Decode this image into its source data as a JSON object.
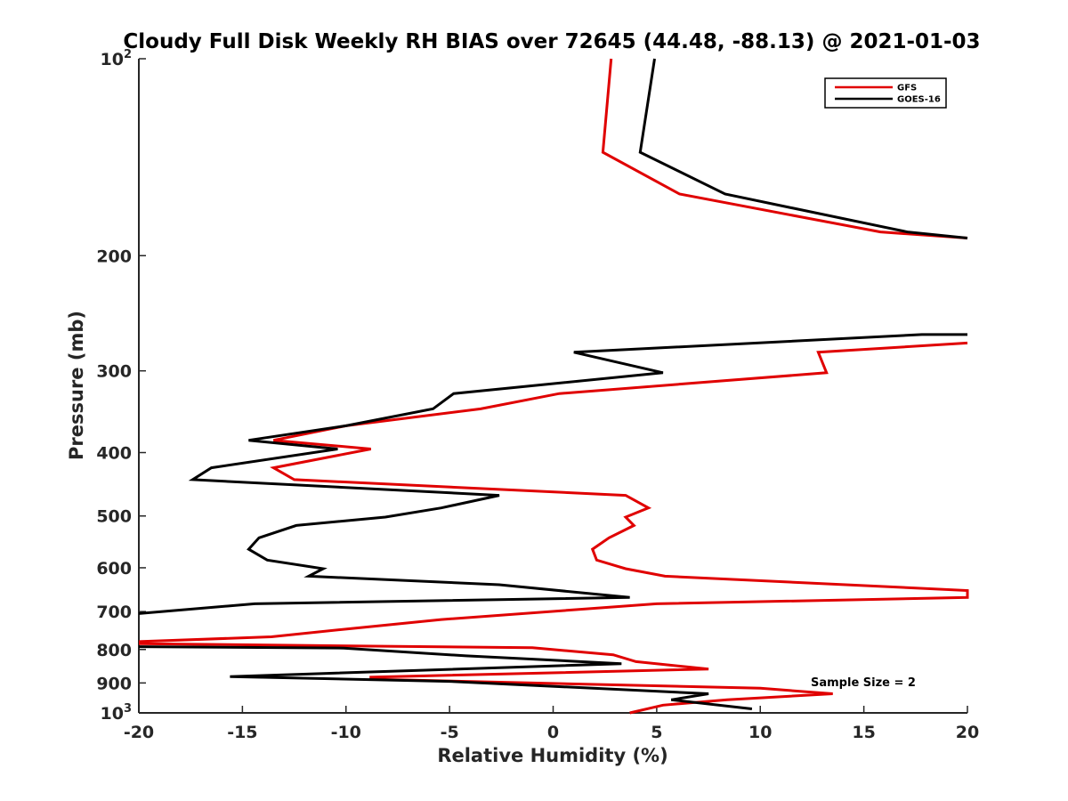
{
  "chart_data": {
    "type": "line",
    "title": "Cloudy Full Disk Weekly RH BIAS over 72645 (44.48, -88.13) @ 2021-01-03",
    "xlabel": "Relative Humidity (%)",
    "ylabel": "Pressure (mb)",
    "xlim": [
      -20,
      20
    ],
    "ylim": [
      100,
      1000
    ],
    "y_scale": "log",
    "y_reversed": true,
    "grid": false,
    "legend_position": "top-right",
    "x_ticks": [
      "-20",
      "-15",
      "-10",
      "-5",
      "0",
      "5",
      "10",
      "15",
      "20"
    ],
    "y_ticks": [
      {
        "value": 100,
        "label": "10",
        "sup": "2"
      },
      {
        "value": 200,
        "label": "200",
        "sup": ""
      },
      {
        "value": 300,
        "label": "300",
        "sup": ""
      },
      {
        "value": 400,
        "label": "400",
        "sup": ""
      },
      {
        "value": 500,
        "label": "500",
        "sup": ""
      },
      {
        "value": 600,
        "label": "600",
        "sup": ""
      },
      {
        "value": 700,
        "label": "700",
        "sup": ""
      },
      {
        "value": 800,
        "label": "800",
        "sup": ""
      },
      {
        "value": 900,
        "label": "900",
        "sup": ""
      },
      {
        "value": 1000,
        "label": "10",
        "sup": "3"
      }
    ],
    "annotation": "Sample Size = 2",
    "series": [
      {
        "name": "GFS",
        "color": "#e00000",
        "points": [
          [
            2.8,
            100
          ],
          [
            2.4,
            139
          ],
          [
            6.1,
            161
          ],
          [
            15.8,
            184
          ],
          [
            20,
            188
          ],
          null,
          [
            20,
            272
          ],
          [
            12.8,
            281
          ],
          [
            13.2,
            302
          ],
          [
            0.3,
            325
          ],
          [
            -3.5,
            343
          ],
          [
            -10,
            364
          ],
          [
            -13.5,
            383
          ],
          [
            -8.8,
            395
          ],
          [
            -13.5,
            422
          ],
          [
            -12.5,
            440
          ],
          [
            3.5,
            465
          ],
          [
            4.6,
            486
          ],
          [
            3.5,
            502
          ],
          [
            3.9,
            517
          ],
          [
            2.7,
            540
          ],
          [
            1.9,
            562
          ],
          [
            2.1,
            584
          ],
          [
            3.5,
            602
          ],
          [
            5.4,
            618
          ],
          [
            20,
            650
          ],
          [
            20,
            666
          ],
          [
            5,
            681
          ],
          [
            -5.4,
            720
          ],
          [
            -9.9,
            744
          ],
          [
            -13.6,
            765
          ],
          [
            -20,
            778
          ],
          null,
          [
            -20,
            784
          ],
          [
            -1,
            795
          ],
          [
            2.9,
            815
          ],
          [
            4,
            835
          ],
          [
            7.5,
            857
          ],
          [
            -8.8,
            882
          ],
          [
            -8.8,
            888
          ],
          [
            10,
            917
          ],
          [
            13.5,
            935
          ],
          [
            8.4,
            955
          ],
          [
            5.3,
            973
          ],
          [
            3.7,
            1000
          ]
        ]
      },
      {
        "name": "GOES-16",
        "color": "#000000",
        "points": [
          [
            4.9,
            100
          ],
          [
            4.2,
            139
          ],
          [
            8.3,
            161
          ],
          [
            17.1,
            184
          ],
          [
            20,
            188
          ],
          null,
          [
            20,
            264
          ],
          [
            17.8,
            264
          ],
          [
            1,
            281
          ],
          [
            5.3,
            302
          ],
          [
            -4.8,
            325
          ],
          [
            -5.8,
            343
          ],
          [
            -10,
            364
          ],
          [
            -14.7,
            383
          ],
          [
            -10.4,
            395
          ],
          [
            -16.5,
            422
          ],
          [
            -17.4,
            440
          ],
          [
            -2.6,
            465
          ],
          [
            -5.4,
            486
          ],
          [
            -8.1,
            502
          ],
          [
            -12.4,
            517
          ],
          [
            -14.2,
            540
          ],
          [
            -14.7,
            562
          ],
          [
            -13.8,
            584
          ],
          [
            -11.1,
            602
          ],
          [
            -11.8,
            618
          ],
          [
            -2.6,
            637
          ],
          [
            3.7,
            666
          ],
          [
            -14.4,
            681
          ],
          [
            -20,
            705
          ],
          null,
          [
            -20,
            792
          ],
          [
            -10.1,
            796
          ],
          [
            -4.2,
            818
          ],
          [
            3.3,
            841
          ],
          [
            -15.6,
            880
          ],
          [
            -5,
            895
          ],
          [
            7.5,
            935
          ],
          [
            5.7,
            955
          ],
          [
            9.6,
            986
          ]
        ]
      }
    ]
  }
}
